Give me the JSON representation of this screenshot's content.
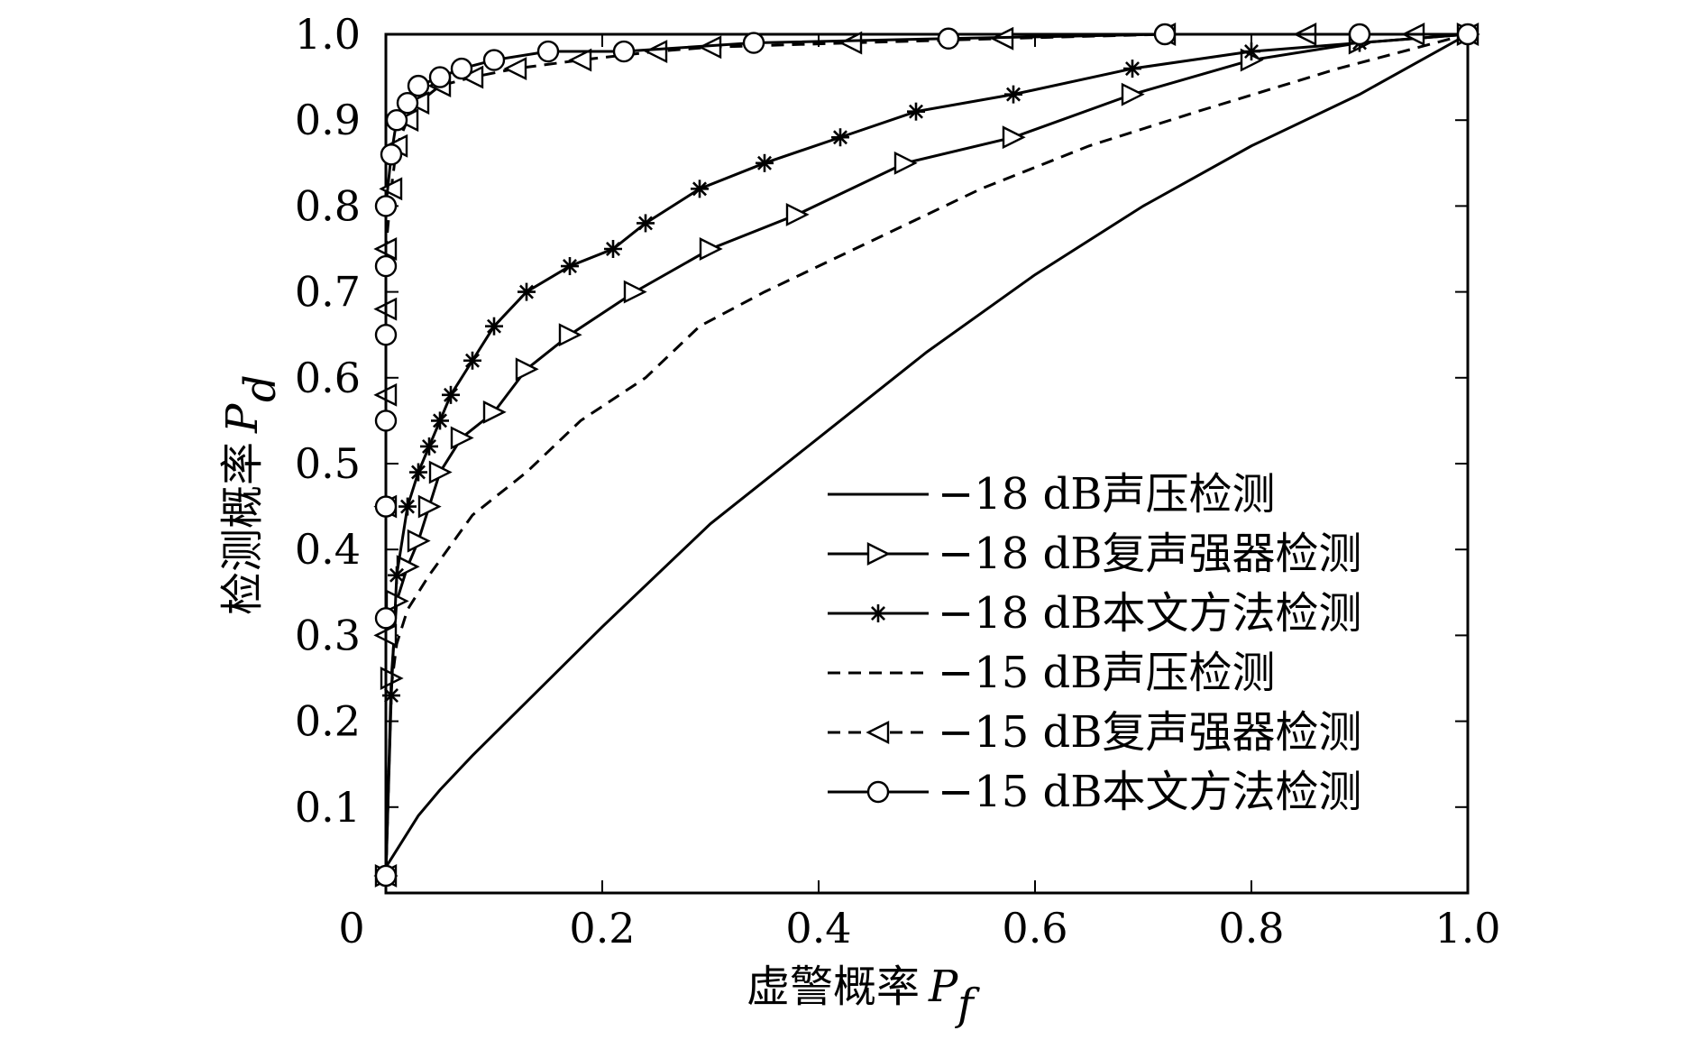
{
  "chart_data": {
    "type": "line",
    "xlabel": "虚警概率",
    "xlabel_symbol": "P",
    "xlabel_sub": "f",
    "ylabel": "检测概率",
    "ylabel_symbol": "P",
    "ylabel_sub": "d",
    "xlim": [
      0,
      1
    ],
    "ylim": [
      0,
      1
    ],
    "x_ticks": [
      "0",
      "0.2",
      "0.4",
      "0.6",
      "0.8",
      "1.0"
    ],
    "y_ticks": [
      "0.1",
      "0.2",
      "0.3",
      "0.4",
      "0.5",
      "0.6",
      "0.7",
      "0.8",
      "0.9",
      "1.0"
    ],
    "grid": false,
    "legend_position": "bottom-right",
    "series": [
      {
        "name": "−18 dB声压检测",
        "line": "solid",
        "marker": "none",
        "color": "#000000",
        "x": [
          0,
          0.01,
          0.03,
          0.05,
          0.08,
          0.12,
          0.2,
          0.3,
          0.4,
          0.5,
          0.6,
          0.7,
          0.8,
          0.9,
          1.0
        ],
        "y": [
          0.03,
          0.05,
          0.09,
          0.12,
          0.16,
          0.21,
          0.31,
          0.43,
          0.53,
          0.63,
          0.72,
          0.8,
          0.87,
          0.93,
          1.0
        ]
      },
      {
        "name": "−18 dB复声强器检测",
        "line": "solid",
        "marker": "triangle-right",
        "color": "#000000",
        "x": [
          0,
          0.005,
          0.01,
          0.02,
          0.03,
          0.04,
          0.05,
          0.07,
          0.1,
          0.13,
          0.17,
          0.23,
          0.3,
          0.38,
          0.48,
          0.58,
          0.69,
          0.8,
          0.9,
          1.0
        ],
        "y": [
          0.02,
          0.25,
          0.34,
          0.38,
          0.41,
          0.45,
          0.49,
          0.53,
          0.56,
          0.61,
          0.65,
          0.7,
          0.75,
          0.79,
          0.85,
          0.88,
          0.93,
          0.97,
          0.99,
          1.0
        ]
      },
      {
        "name": "−18 dB本文方法检测",
        "line": "solid",
        "marker": "star",
        "color": "#000000",
        "x": [
          0,
          0.005,
          0.01,
          0.02,
          0.03,
          0.04,
          0.05,
          0.06,
          0.08,
          0.1,
          0.13,
          0.17,
          0.21,
          0.24,
          0.29,
          0.35,
          0.42,
          0.49,
          0.58,
          0.69,
          0.8,
          0.9,
          1.0
        ],
        "y": [
          0.02,
          0.23,
          0.37,
          0.45,
          0.49,
          0.52,
          0.55,
          0.58,
          0.62,
          0.66,
          0.7,
          0.73,
          0.75,
          0.78,
          0.82,
          0.85,
          0.88,
          0.91,
          0.93,
          0.96,
          0.98,
          0.99,
          1.0
        ]
      },
      {
        "name": "−15 dB声压检测",
        "line": "dashed",
        "marker": "none",
        "color": "#000000",
        "x": [
          0,
          0.005,
          0.01,
          0.02,
          0.04,
          0.08,
          0.13,
          0.18,
          0.24,
          0.29,
          0.35,
          0.45,
          0.55,
          0.65,
          0.75,
          0.88,
          1.0
        ],
        "y": [
          0.02,
          0.24,
          0.29,
          0.33,
          0.37,
          0.44,
          0.49,
          0.55,
          0.6,
          0.66,
          0.7,
          0.76,
          0.82,
          0.87,
          0.91,
          0.96,
          1.0
        ]
      },
      {
        "name": "−15 dB复声强器检测",
        "line": "dashed",
        "marker": "triangle-left",
        "color": "#000000",
        "x": [
          0,
          0.0,
          0.0,
          0.0,
          0.0,
          0.0,
          0.005,
          0.01,
          0.02,
          0.03,
          0.05,
          0.08,
          0.12,
          0.18,
          0.25,
          0.3,
          0.43,
          0.57,
          0.72,
          0.85,
          0.95,
          1.0
        ],
        "y": [
          0.02,
          0.3,
          0.45,
          0.58,
          0.68,
          0.75,
          0.82,
          0.87,
          0.9,
          0.92,
          0.94,
          0.95,
          0.96,
          0.97,
          0.98,
          0.985,
          0.99,
          0.995,
          1.0,
          1.0,
          1.0,
          1.0
        ]
      },
      {
        "name": "−15 dB本文方法检测",
        "line": "solid",
        "marker": "circle",
        "color": "#000000",
        "x": [
          0,
          0.0,
          0.0,
          0.0,
          0.0,
          0.0,
          0.0,
          0.005,
          0.01,
          0.02,
          0.03,
          0.05,
          0.07,
          0.1,
          0.15,
          0.22,
          0.34,
          0.52,
          0.72,
          0.9,
          1.0
        ],
        "y": [
          0.02,
          0.32,
          0.45,
          0.55,
          0.65,
          0.73,
          0.8,
          0.86,
          0.9,
          0.92,
          0.94,
          0.95,
          0.96,
          0.97,
          0.98,
          0.98,
          0.99,
          0.995,
          1.0,
          1.0,
          1.0
        ]
      }
    ]
  }
}
